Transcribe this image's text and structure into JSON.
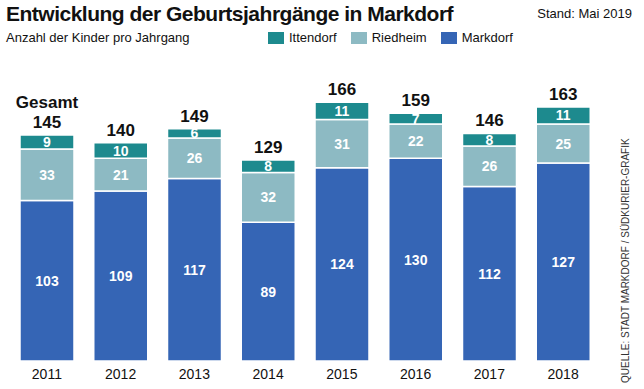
{
  "chart_data": {
    "type": "bar",
    "title": "Entwicklung der Geburtsjahrgänge in Markdorf",
    "subtitle": "Anzahl der Kinder pro Jahrgang",
    "note": "Stand: Mai 2019",
    "source": "QUELLE: STADT MARKDORF / SÜDKURIER-GRAFIK",
    "total_label": "Gesamt",
    "categories": [
      "2011",
      "2012",
      "2013",
      "2014",
      "2015",
      "2016",
      "2017",
      "2018"
    ],
    "series": [
      {
        "name": "Ittendorf",
        "color": "#1d8a8e",
        "values": [
          9,
          10,
          6,
          8,
          11,
          7,
          8,
          11
        ]
      },
      {
        "name": "Riedheim",
        "color": "#8dbac3",
        "values": [
          33,
          21,
          26,
          32,
          31,
          22,
          26,
          25
        ]
      },
      {
        "name": "Markdorf",
        "color": "#3565b5",
        "values": [
          103,
          109,
          117,
          89,
          124,
          130,
          112,
          127
        ]
      }
    ],
    "totals": [
      145,
      140,
      149,
      129,
      166,
      159,
      146,
      163
    ],
    "stacked": true,
    "data_labels": true,
    "tick_labels": "x",
    "legend": "top",
    "grid": false,
    "ylim": [
      0,
      170
    ]
  }
}
